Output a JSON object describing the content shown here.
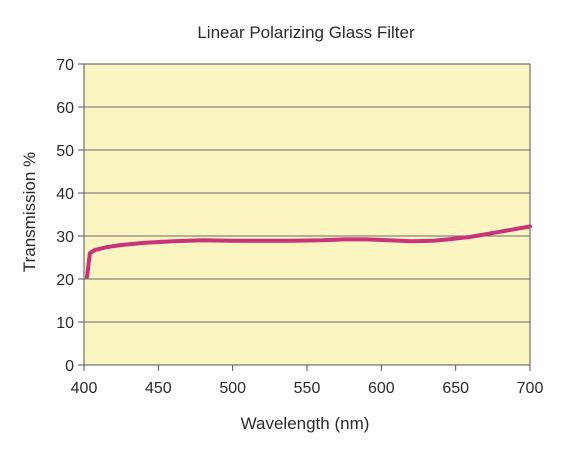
{
  "chart_data": {
    "type": "line",
    "title": "Linear Polarizing Glass Filter",
    "xlabel": "Wavelength (nm)",
    "ylabel": "Transmission %",
    "xlim": [
      400,
      700
    ],
    "ylim": [
      0,
      70
    ],
    "xticks": [
      400,
      450,
      500,
      550,
      600,
      650,
      700
    ],
    "yticks": [
      0,
      10,
      20,
      30,
      40,
      50,
      60,
      70
    ],
    "grid": "horizontal",
    "plot_background": "#fbf5c2",
    "series": [
      {
        "color": "#c8337a",
        "x": [
          402,
          404,
          407,
          415,
          425,
          440,
          460,
          480,
          500,
          520,
          540,
          560,
          575,
          590,
          605,
          620,
          635,
          645,
          660,
          680,
          700
        ],
        "y": [
          20.5,
          26,
          26.7,
          27.4,
          27.9,
          28.4,
          28.8,
          29.0,
          28.9,
          28.9,
          28.9,
          29.0,
          29.2,
          29.2,
          29.0,
          28.8,
          28.9,
          29.2,
          29.8,
          31.0,
          32.2
        ]
      }
    ]
  }
}
